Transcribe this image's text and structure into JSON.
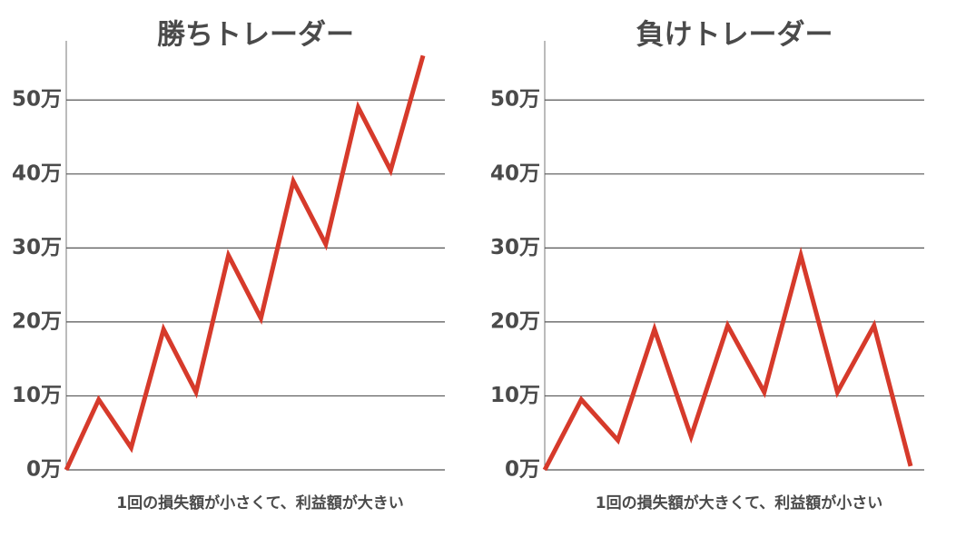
{
  "chart_data": [
    {
      "type": "line",
      "title": "勝ちトレーダー",
      "xlabel": "1回の損失額が小さくて、利益額が大きい",
      "categories": [
        null,
        null,
        null,
        null,
        null,
        null,
        null,
        null,
        null,
        null,
        null,
        null
      ],
      "values": [
        0,
        9.5,
        3,
        19,
        10.5,
        29,
        20.5,
        39,
        30.5,
        49,
        40.5,
        56
      ],
      "color": "#d63a2b",
      "ylim": [
        0,
        58
      ],
      "yticks": [
        {
          "value": 0,
          "label": "0万"
        },
        {
          "value": 10,
          "label": "10万"
        },
        {
          "value": 20,
          "label": "20万"
        },
        {
          "value": 30,
          "label": "30万"
        },
        {
          "value": 40,
          "label": "40万"
        },
        {
          "value": 50,
          "label": "50万"
        }
      ],
      "grid": true
    },
    {
      "type": "line",
      "title": "負けトレーダー",
      "xlabel": "1回の損失額が大きくて、利益額が小さい",
      "categories": [
        null,
        null,
        null,
        null,
        null,
        null,
        null,
        null,
        null,
        null,
        null
      ],
      "values": [
        0,
        9.5,
        4,
        19,
        4.5,
        19.5,
        10.5,
        29,
        10.5,
        19.5,
        0.5
      ],
      "color": "#d63a2b",
      "ylim": [
        0,
        58
      ],
      "yticks": [
        {
          "value": 0,
          "label": "0万"
        },
        {
          "value": 10,
          "label": "10万"
        },
        {
          "value": 20,
          "label": "20万"
        },
        {
          "value": 30,
          "label": "30万"
        },
        {
          "value": 40,
          "label": "40万"
        },
        {
          "value": 50,
          "label": "50万"
        }
      ],
      "grid": true
    }
  ]
}
